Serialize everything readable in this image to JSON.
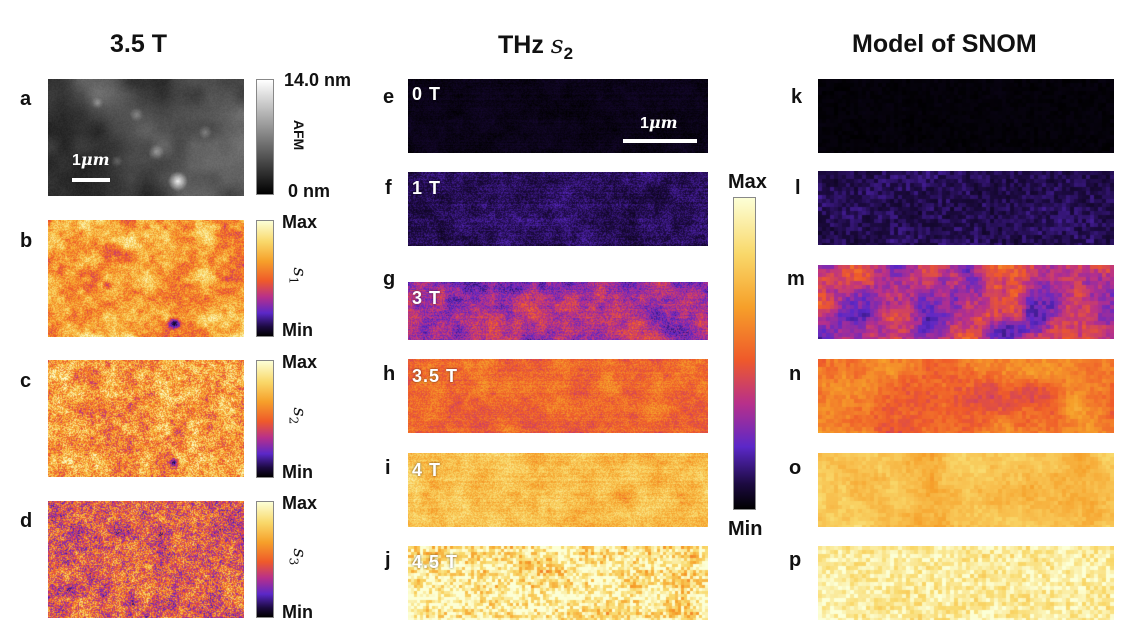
{
  "titles": {
    "col1": "3.5 T",
    "col2_prefix": "THz ",
    "col2_symbol": "s",
    "col2_sub": "2",
    "col3": "Model of SNOM"
  },
  "panel_letters": [
    "a",
    "b",
    "c",
    "d",
    "e",
    "f",
    "g",
    "h",
    "i",
    "j",
    "k",
    "l",
    "m",
    "n",
    "o",
    "p"
  ],
  "afm": {
    "max_label": "14.0 nm",
    "min_label": "0 nm",
    "axis_label": "AFM",
    "scale_bar": "1",
    "scale_unit": "μm"
  },
  "harmonics": [
    {
      "symbol": "s",
      "sub": "1",
      "max": "Max",
      "min": "Min"
    },
    {
      "symbol": "s",
      "sub": "2",
      "max": "Max",
      "min": "Min"
    },
    {
      "symbol": "s",
      "sub": "3",
      "max": "Max",
      "min": "Min"
    }
  ],
  "thz": {
    "fields": [
      "0 T",
      "1 T",
      "3 T",
      "3.5 T",
      "4 T",
      "4.5 T"
    ],
    "scale_bar": "1",
    "scale_unit": "μm",
    "cbar_max": "Max",
    "cbar_min": "Min"
  },
  "model_levels": [
    0.02,
    0.16,
    0.45,
    0.62,
    0.8,
    0.93
  ],
  "thz_levels": [
    0.05,
    0.17,
    0.4,
    0.6,
    0.8,
    0.93
  ],
  "colors": {
    "hot_map": [
      "#000000",
      "#1c0a40",
      "#5b28c8",
      "#b8308a",
      "#ef5a2a",
      "#f6a02a",
      "#f9d86a",
      "#fcffd6"
    ]
  }
}
